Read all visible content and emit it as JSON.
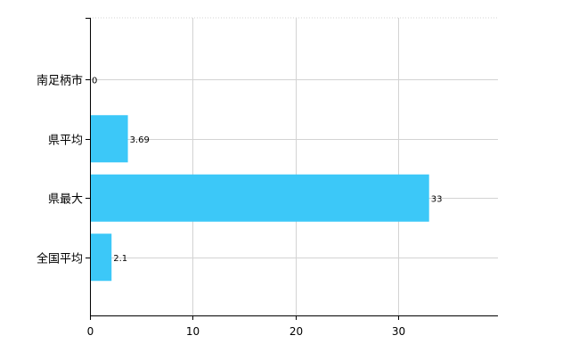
{
  "chart_data": {
    "type": "bar",
    "orientation": "horizontal",
    "categories": [
      "南足柄市",
      "県平均",
      "県最大",
      "全国平均"
    ],
    "values": [
      0,
      3.69,
      33,
      2.1
    ],
    "value_labels": [
      "0",
      "3.69",
      "33",
      "2.1"
    ],
    "xlim": [
      0,
      39.7
    ],
    "xticks": [
      0,
      10,
      20,
      30
    ],
    "xtick_labels": [
      "0",
      "10",
      "20",
      "30"
    ],
    "grid": true,
    "legend": "none",
    "colors": {
      "bar": "#3cc8f8",
      "grid": "#d3d3d3",
      "axis": "#000000",
      "text": "#000000"
    }
  }
}
